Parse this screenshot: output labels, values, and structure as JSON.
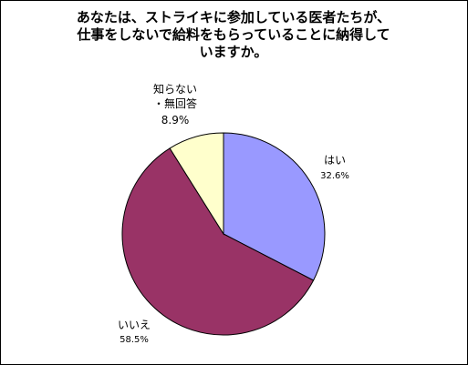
{
  "chart_data": {
    "type": "pie",
    "title_lines": [
      "あなたは、ストライキに参加している医者たちが、",
      "仕事をしないで給料をもらっていることに納得して",
      "いますか。"
    ],
    "slices": [
      {
        "label": "はい",
        "pct_label": "32.6%",
        "value": 32.6,
        "color": "#9999ff"
      },
      {
        "label": "いいえ",
        "pct_label": "58.5%",
        "value": 58.5,
        "color": "#993366"
      },
      {
        "label_lines": [
          "知らない",
          "・無回答"
        ],
        "pct_label": "8.9%",
        "value": 8.9,
        "color": "#ffffcc"
      }
    ],
    "legend": "none"
  }
}
